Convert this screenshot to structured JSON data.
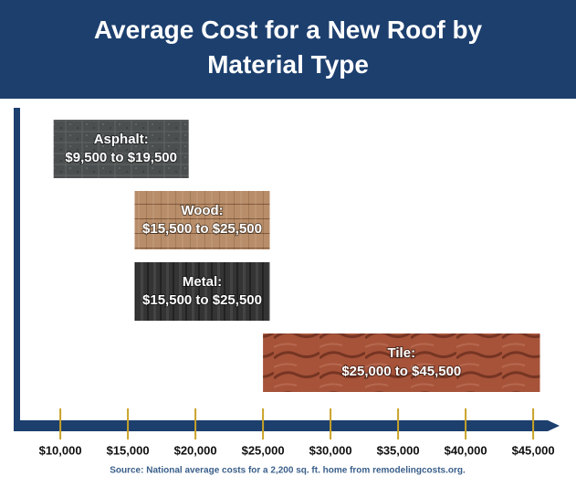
{
  "chart_data": {
    "type": "range-bar",
    "title": "Average Cost for a New Roof by Material Type",
    "categories": [
      "Asphalt:",
      "Wood:",
      "Metal:",
      "Tile:"
    ],
    "low": [
      9500,
      15500,
      15500,
      25000
    ],
    "high": [
      19500,
      25500,
      25500,
      45500
    ],
    "value_labels": [
      "$9,500 to $19,500",
      "$15,500 to $25,500",
      "$15,500 to $25,500",
      "$25,000 to $45,500"
    ],
    "colors": [
      "#4b4f50",
      "#b88d69",
      "#343434",
      "#a6533a"
    ],
    "xlim": [
      6750,
      46750
    ],
    "xticks": [
      {
        "value": 10000,
        "label": "$10,000"
      },
      {
        "value": 15000,
        "label": "$15,000"
      },
      {
        "value": 20000,
        "label": "$20,000"
      },
      {
        "value": 25000,
        "label": "$25,000"
      },
      {
        "value": 30000,
        "label": "$30,000"
      },
      {
        "value": 35000,
        "label": "$35,000"
      },
      {
        "value": 40000,
        "label": "$40,000"
      },
      {
        "value": 45000,
        "label": "$45,000"
      }
    ],
    "source": "Source: National average costs for a 2,200 sq. ft. home from remodelingcosts.org."
  }
}
